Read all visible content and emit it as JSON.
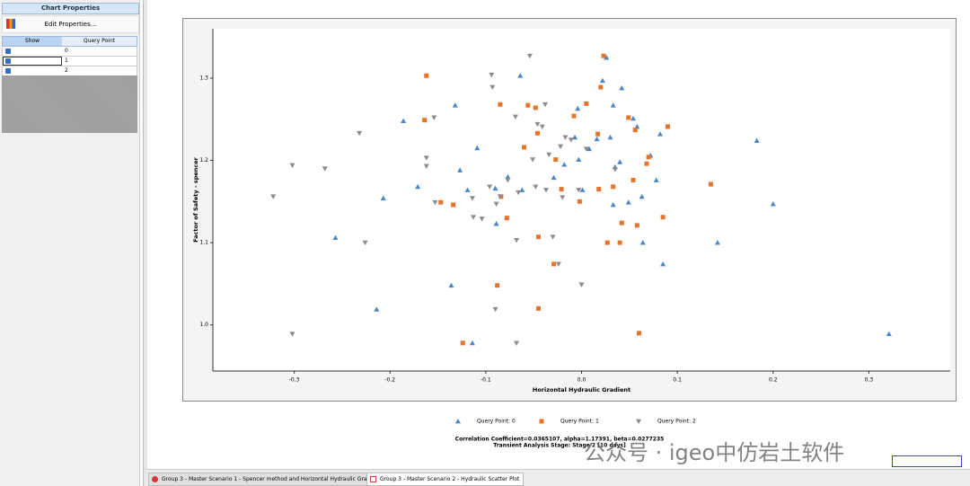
{
  "panel": {
    "title": "Chart Properties",
    "button": "Edit Properties...",
    "table": {
      "header": [
        "Show",
        "Query Point"
      ],
      "rows": [
        "0",
        "1",
        "2"
      ]
    }
  },
  "tabs": [
    "Group 3 - Master Scenario 1 - Spencer method and Horizontal Hydraulic Gradient",
    "Group 3 - Master Scenario 2 - Hydraulic Scatter Plot"
  ],
  "watermark": "公众号 · igeo中仿岩土软件",
  "chart_data": {
    "type": "scatter",
    "xlabel": "Horizontal Hydraulic Gradient",
    "ylabel": "Factor of Safety - spencer",
    "footer": [
      "Correlation Coefficient=0.0365107, alpha=1.17391, beta=0.0277235",
      "Transient Analysis Stage: Stage 2 [10 days]"
    ],
    "xlim": [
      -0.385,
      0.385
    ],
    "ylim": [
      0.944,
      1.36
    ],
    "xticks": [
      -0.3,
      -0.2,
      -0.1,
      {
        "value": 0,
        "label": "0.0"
      },
      0.1,
      0.2,
      0.3
    ],
    "yticks": [
      {
        "value": 1,
        "label": "1.0"
      },
      1.1,
      1.2,
      1.3
    ],
    "series": [
      {
        "name": "Query Point: 0",
        "color": "#4a86c8",
        "marker": "triangle-up",
        "x": [
          -0.257,
          -0.207,
          -0.214,
          -0.186,
          -0.171,
          -0.136,
          -0.132,
          -0.127,
          -0.119,
          -0.114,
          -0.109,
          -0.09,
          -0.089,
          -0.077,
          -0.064,
          -0.062,
          -0.029,
          -0.018,
          -0.007,
          -0.004,
          -0.003,
          0.001,
          0.008,
          0.016,
          0.022,
          0.026,
          0.03,
          0.033,
          0.033,
          0.035,
          0.04,
          0.042,
          0.049,
          0.054,
          0.058,
          0.063,
          0.064,
          0.072,
          0.078,
          0.082,
          0.085,
          0.142,
          0.183,
          0.2,
          0.321
        ],
        "values": [
          1.106,
          1.154,
          1.019,
          1.248,
          1.168,
          1.048,
          1.267,
          1.188,
          1.164,
          0.978,
          1.215,
          1.166,
          1.123,
          1.18,
          1.303,
          1.164,
          1.179,
          1.195,
          1.228,
          1.263,
          1.201,
          1.164,
          1.214,
          1.226,
          1.297,
          1.325,
          1.228,
          1.267,
          1.146,
          1.192,
          1.198,
          1.288,
          1.149,
          1.251,
          1.241,
          1.156,
          1.1,
          1.206,
          1.176,
          1.232,
          1.074,
          1.1,
          1.224,
          1.147,
          0.989
        ]
      },
      {
        "name": "Query Point: 1",
        "color": "#e8742a",
        "marker": "square",
        "x": [
          -0.162,
          -0.164,
          -0.147,
          -0.134,
          -0.124,
          -0.085,
          -0.088,
          -0.084,
          -0.078,
          -0.06,
          -0.056,
          -0.048,
          -0.046,
          -0.045,
          -0.029,
          -0.027,
          -0.021,
          -0.045,
          -0.008,
          -0.002,
          0.005,
          0.017,
          0.018,
          0.02,
          0.023,
          0.027,
          0.033,
          0.04,
          0.042,
          0.049,
          0.054,
          0.056,
          0.058,
          0.06,
          0.068,
          0.07,
          0.085,
          0.09,
          0.135
        ],
        "values": [
          1.303,
          1.249,
          1.149,
          1.146,
          0.978,
          1.268,
          1.048,
          1.156,
          1.13,
          1.216,
          1.267,
          1.264,
          1.233,
          1.107,
          1.074,
          1.201,
          1.165,
          1.02,
          1.254,
          1.15,
          1.269,
          1.232,
          1.165,
          1.289,
          1.327,
          1.1,
          1.168,
          1.1,
          1.124,
          1.252,
          1.176,
          1.237,
          1.121,
          0.99,
          1.196,
          1.204,
          1.131,
          1.241,
          1.171
        ]
      },
      {
        "name": "Query Point: 2",
        "color": "#8c8c8c",
        "marker": "triangle-down",
        "x": [
          -0.322,
          -0.302,
          -0.302,
          -0.268,
          -0.232,
          -0.226,
          -0.162,
          -0.162,
          -0.154,
          -0.153,
          -0.114,
          -0.113,
          -0.104,
          -0.096,
          -0.094,
          -0.093,
          -0.09,
          -0.089,
          -0.085,
          -0.077,
          -0.069,
          -0.068,
          -0.066,
          -0.054,
          -0.051,
          -0.048,
          -0.046,
          -0.041,
          -0.038,
          -0.037,
          -0.034,
          -0.03,
          -0.024,
          -0.022,
          -0.02,
          -0.017,
          -0.011,
          -0.003,
          0,
          0.005,
          0.035,
          -0.068
        ],
        "values": [
          1.156,
          1.194,
          0.989,
          1.19,
          1.233,
          1.1,
          1.203,
          1.193,
          1.252,
          1.149,
          1.154,
          1.131,
          1.129,
          1.168,
          1.304,
          1.289,
          1.019,
          1.147,
          1.156,
          1.176,
          1.253,
          1.103,
          1.161,
          1.327,
          1.201,
          1.168,
          1.244,
          1.241,
          1.268,
          1.164,
          1.207,
          1.107,
          1.074,
          1.217,
          1.155,
          1.228,
          1.225,
          1.164,
          1.049,
          1.214,
          1.189,
          0.978
        ]
      }
    ]
  }
}
